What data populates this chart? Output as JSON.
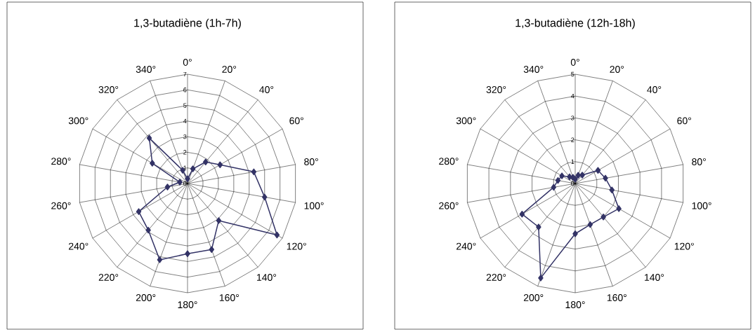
{
  "chart_data": [
    {
      "type": "radar",
      "title": "1,3-butadiène (1h-7h)",
      "categories": [
        "0°",
        "20°",
        "40°",
        "60°",
        "80°",
        "100°",
        "120°",
        "140°",
        "160°",
        "180°",
        "200°",
        "220°",
        "240°",
        "260°",
        "280°",
        "300°",
        "320°",
        "340°"
      ],
      "series": [
        {
          "color": "#333366",
          "values": [
            0.3,
            1.0,
            1.8,
            2.4,
            4.3,
            5.0,
            6.6,
            3.1,
            4.5,
            4.5,
            5.2,
            3.9,
            3.6,
            1.3,
            0.5,
            2.6,
            3.8,
            0.9
          ]
        }
      ],
      "ylim": [
        0,
        7
      ],
      "yticks": [
        0,
        1,
        2,
        3,
        4,
        5,
        6,
        7
      ],
      "grid": true,
      "marker": "diamond"
    },
    {
      "type": "radar",
      "title": "1,3-butadiène (12h-18h)",
      "categories": [
        "0°",
        "20°",
        "40°",
        "60°",
        "80°",
        "100°",
        "120°",
        "140°",
        "160°",
        "180°",
        "200°",
        "220°",
        "240°",
        "260°",
        "280°",
        "300°",
        "320°",
        "340°"
      ],
      "series": [
        {
          "color": "#333366",
          "values": [
            0.2,
            0.4,
            0.5,
            1.2,
            1.4,
            1.7,
            2.3,
            2.0,
            2.0,
            2.3,
            4.6,
            2.6,
            2.8,
            1.0,
            0.8,
            0.7,
            0.4,
            0.3
          ]
        }
      ],
      "ylim": [
        0,
        5
      ],
      "yticks": [
        0,
        1,
        2,
        3,
        4,
        5
      ],
      "grid": true,
      "marker": "diamond"
    }
  ]
}
